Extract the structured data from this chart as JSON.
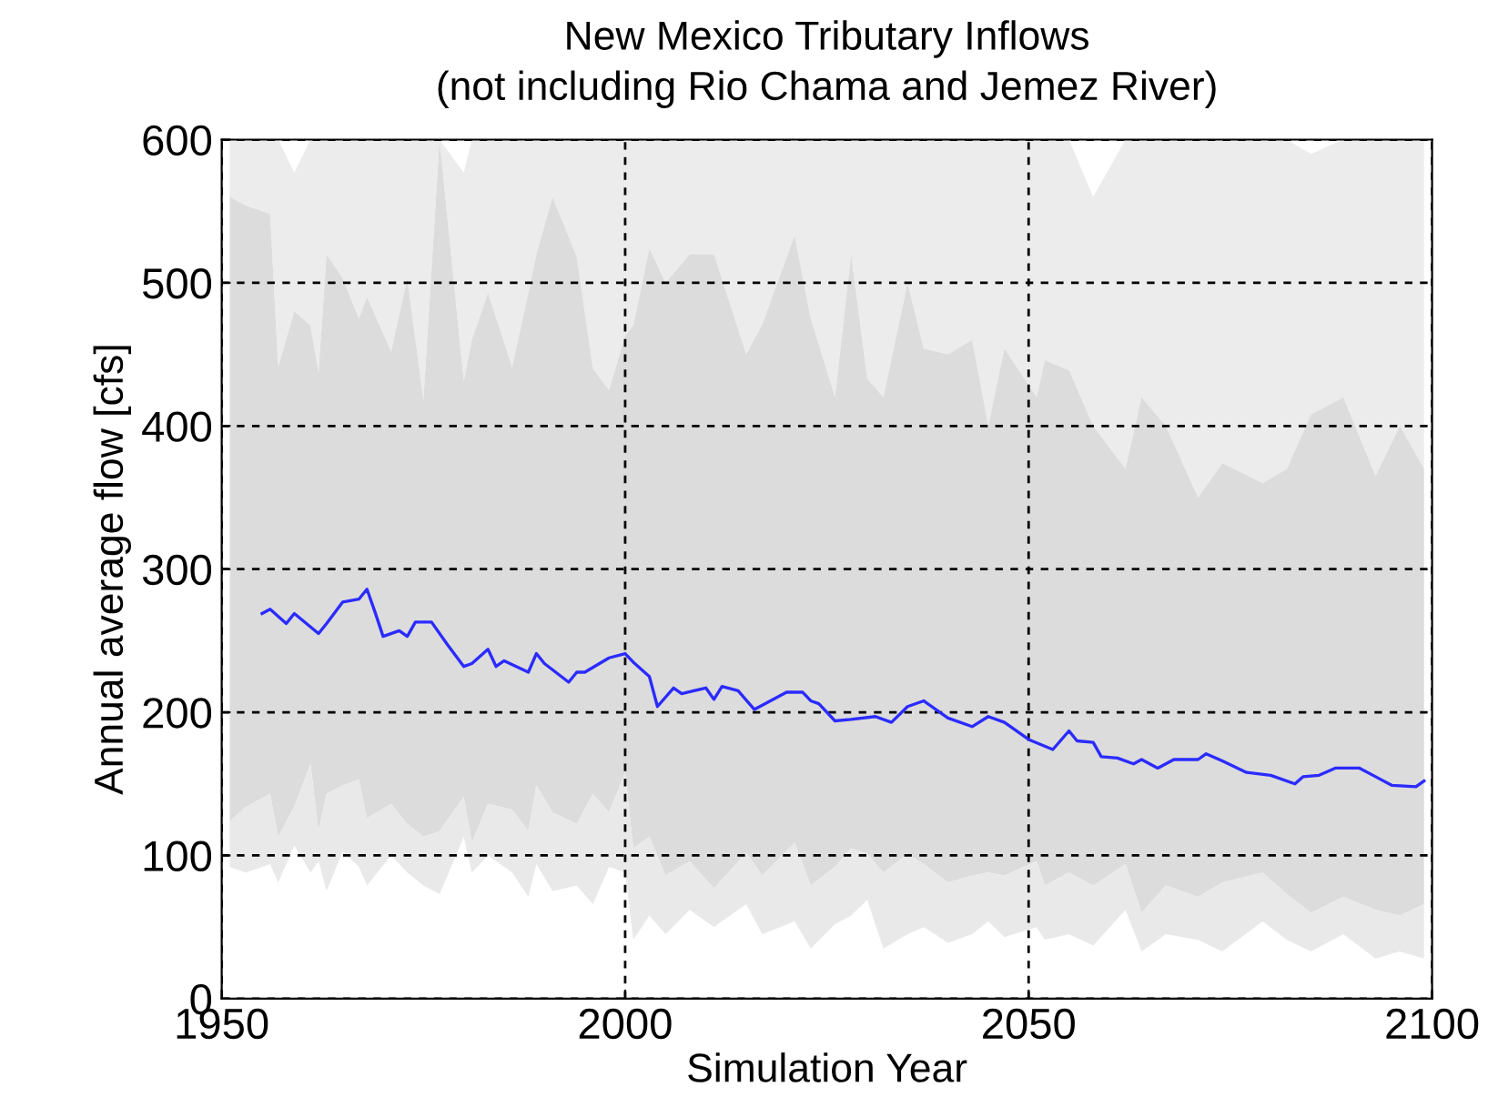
{
  "chart_data": {
    "type": "line",
    "title": "New Mexico Tributary Inflows",
    "subtitle": "(not including Rio Chama and Jemez River)",
    "xlabel": "Simulation Year",
    "ylabel": "Annual average flow [cfs]",
    "xlim": [
      1950,
      2100
    ],
    "xticks": [
      1950,
      2000,
      2050,
      2100
    ],
    "ylim": [
      0,
      600
    ],
    "yticks": [
      0,
      100,
      200,
      300,
      400,
      500,
      600
    ],
    "grid": true,
    "legend": false,
    "series": [
      {
        "color": "#ececec",
        "x": [
          1951,
          1953,
          1956,
          1957,
          1959,
          1961,
          1962,
          1963,
          1965,
          1967,
          1968,
          1971,
          1973,
          1975,
          1977,
          1980,
          1981,
          1983,
          1986,
          1988,
          1989,
          1991,
          1994,
          1996,
          1998,
          2000,
          2001,
          2003,
          2005,
          2008,
          2011,
          2015,
          2017,
          2021,
          2023,
          2026,
          2028,
          2030,
          2032,
          2035,
          2037,
          2040,
          2043,
          2045,
          2047,
          2051,
          2052,
          2055,
          2058,
          2062,
          2064,
          2067,
          2071,
          2074,
          2079,
          2082,
          2085,
          2089,
          2093,
          2096,
          2099
        ],
        "values": [
          null,
          null,
          null,
          null,
          null,
          null,
          null,
          null,
          null,
          null,
          null,
          null,
          null,
          null,
          null,
          null,
          null,
          null,
          null,
          null,
          null,
          null,
          null,
          null,
          null,
          null,
          null,
          null,
          null,
          null,
          null,
          null,
          null,
          null,
          null,
          null,
          null,
          null,
          null,
          null,
          null,
          null,
          null,
          null,
          null,
          null,
          null,
          null,
          null,
          null,
          null,
          null,
          null,
          null,
          null,
          null,
          null,
          null,
          null,
          null,
          null
        ],
        "upper": [
          600,
          600,
          600,
          600,
          577,
          600,
          600,
          600,
          600,
          600,
          600,
          600,
          600,
          600,
          600,
          577,
          600,
          600,
          600,
          600,
          600,
          600,
          600,
          600,
          600,
          600,
          600,
          600,
          600,
          600,
          600,
          600,
          600,
          600,
          600,
          600,
          600,
          600,
          600,
          600,
          600,
          600,
          600,
          600,
          600,
          600,
          600,
          600,
          560,
          600,
          600,
          600,
          600,
          600,
          600,
          600,
          590,
          600,
          600,
          600,
          600
        ],
        "lower": [
          560,
          554,
          548,
          441,
          480,
          470,
          437,
          520,
          503,
          475,
          490,
          452,
          503,
          418,
          600,
          431,
          460,
          493,
          441,
          493,
          520,
          560,
          518,
          440,
          425,
          463,
          470,
          524,
          500,
          520,
          520,
          450,
          471,
          533,
          475,
          420,
          520,
          433,
          420,
          500,
          454,
          450,
          460,
          400,
          454,
          420,
          446,
          439,
          400,
          370,
          420,
          400,
          350,
          374,
          360,
          370,
          408,
          420,
          365,
          400,
          370
        ]
      },
      {
        "color": "#dcdcdc",
        "x": [
          1951,
          1953,
          1956,
          1957,
          1959,
          1961,
          1962,
          1963,
          1965,
          1967,
          1968,
          1971,
          1973,
          1975,
          1977,
          1980,
          1981,
          1983,
          1986,
          1988,
          1989,
          1991,
          1994,
          1996,
          1998,
          2000,
          2001,
          2003,
          2005,
          2008,
          2011,
          2015,
          2017,
          2021,
          2023,
          2026,
          2028,
          2030,
          2032,
          2035,
          2037,
          2040,
          2043,
          2045,
          2047,
          2051,
          2052,
          2055,
          2058,
          2062,
          2064,
          2067,
          2071,
          2074,
          2079,
          2082,
          2085,
          2089,
          2093,
          2096,
          2099
        ],
        "values": [
          null,
          null,
          null,
          null,
          null,
          null,
          null,
          null,
          null,
          null,
          null,
          null,
          null,
          null,
          null,
          null,
          null,
          null,
          null,
          null,
          null,
          null,
          null,
          null,
          null,
          null,
          null,
          null,
          null,
          null,
          null,
          null,
          null,
          null,
          null,
          null,
          null,
          null,
          null,
          null,
          null,
          null,
          null,
          null,
          null,
          null,
          null,
          null,
          null,
          null,
          null,
          null,
          null,
          null,
          null,
          null,
          null,
          null,
          null,
          null,
          null
        ],
        "upper": [
          560,
          554,
          548,
          441,
          480,
          470,
          437,
          520,
          503,
          475,
          490,
          452,
          503,
          418,
          600,
          431,
          460,
          493,
          441,
          493,
          520,
          560,
          518,
          440,
          425,
          463,
          470,
          524,
          500,
          520,
          520,
          450,
          471,
          533,
          475,
          420,
          520,
          433,
          420,
          500,
          454,
          450,
          460,
          400,
          454,
          420,
          446,
          439,
          400,
          370,
          420,
          400,
          350,
          374,
          360,
          370,
          408,
          420,
          365,
          400,
          370
        ],
        "lower": [
          124,
          134,
          143,
          113,
          134,
          164,
          117,
          143,
          149,
          153,
          126,
          136,
          122,
          113,
          117,
          141,
          109,
          136,
          132,
          117,
          149,
          130,
          122,
          143,
          130,
          158,
          105,
          113,
          86,
          96,
          77,
          102,
          86,
          109,
          79,
          92,
          105,
          101,
          88,
          101,
          94,
          81,
          86,
          88,
          86,
          96,
          79,
          88,
          79,
          94,
          60,
          79,
          71,
          81,
          88,
          73,
          60,
          71,
          62,
          58,
          66
        ]
      },
      {
        "color": "#e9e9e9",
        "x": [
          1951,
          1953,
          1956,
          1957,
          1959,
          1961,
          1962,
          1963,
          1965,
          1967,
          1968,
          1971,
          1973,
          1975,
          1977,
          1980,
          1981,
          1983,
          1986,
          1988,
          1989,
          1991,
          1994,
          1996,
          1998,
          2000,
          2001,
          2003,
          2005,
          2008,
          2011,
          2015,
          2017,
          2021,
          2023,
          2026,
          2028,
          2030,
          2032,
          2035,
          2037,
          2040,
          2043,
          2045,
          2047,
          2051,
          2052,
          2055,
          2058,
          2062,
          2064,
          2067,
          2071,
          2074,
          2079,
          2082,
          2085,
          2089,
          2093,
          2096,
          2099
        ],
        "values": [
          null,
          null,
          null,
          null,
          null,
          null,
          null,
          null,
          null,
          null,
          null,
          null,
          null,
          null,
          null,
          null,
          null,
          null,
          null,
          null,
          null,
          null,
          null,
          null,
          null,
          null,
          null,
          null,
          null,
          null,
          null,
          null,
          null,
          null,
          null,
          null,
          null,
          null,
          null,
          null,
          null,
          null,
          null,
          null,
          null,
          null,
          null,
          null,
          null,
          null,
          null,
          null,
          null,
          null,
          null,
          null,
          null,
          null,
          null,
          null,
          null
        ],
        "upper": [
          124,
          134,
          143,
          113,
          134,
          164,
          117,
          143,
          149,
          153,
          126,
          136,
          122,
          113,
          117,
          141,
          109,
          136,
          132,
          117,
          149,
          130,
          122,
          143,
          130,
          158,
          105,
          113,
          86,
          96,
          77,
          102,
          86,
          109,
          79,
          92,
          105,
          101,
          88,
          101,
          94,
          81,
          86,
          88,
          86,
          96,
          79,
          88,
          79,
          94,
          60,
          79,
          71,
          81,
          88,
          73,
          60,
          71,
          62,
          58,
          66
        ],
        "lower": [
          92,
          88,
          94,
          81,
          107,
          88,
          96,
          75,
          103,
          92,
          79,
          100,
          88,
          79,
          73,
          113,
          88,
          100,
          88,
          71,
          94,
          75,
          79,
          66,
          92,
          88,
          41,
          58,
          45,
          62,
          50,
          66,
          45,
          54,
          35,
          52,
          58,
          69,
          35,
          45,
          50,
          39,
          45,
          54,
          43,
          50,
          41,
          45,
          37,
          62,
          33,
          45,
          41,
          33,
          54,
          41,
          33,
          45,
          28,
          33,
          28
        ]
      },
      {
        "color": "#2b2bff",
        "x": [
          1955,
          1956,
          1958,
          1959,
          1962,
          1963,
          1965,
          1967,
          1968,
          1969,
          1970,
          1972,
          1973,
          1974,
          1976,
          1978,
          1980,
          1981,
          1983,
          1984,
          1985,
          1988,
          1989,
          1990,
          1993,
          1994,
          1995,
          1998,
          2000,
          2001,
          2003,
          2004,
          2006,
          2007,
          2010,
          2011,
          2012,
          2014,
          2016,
          2020,
          2022,
          2023,
          2024,
          2026,
          2028,
          2031,
          2033,
          2035,
          2037,
          2040,
          2043,
          2045,
          2047,
          2050,
          2053,
          2055,
          2056,
          2058,
          2059,
          2061,
          2063,
          2064,
          2066,
          2068,
          2071,
          2072,
          2074,
          2077,
          2080,
          2083,
          2084,
          2086,
          2088,
          2091,
          2093,
          2095,
          2098,
          2099
        ],
        "values": [
          269,
          272,
          262,
          269,
          255,
          262,
          277,
          279,
          286,
          270,
          253,
          257,
          253,
          263,
          263,
          247,
          232,
          234,
          244,
          232,
          236,
          228,
          241,
          234,
          221,
          228,
          228,
          238,
          241,
          235,
          225,
          204,
          217,
          213,
          217,
          209,
          218,
          215,
          202,
          214,
          214,
          208,
          206,
          194,
          195,
          197,
          193,
          204,
          208,
          196,
          190,
          197,
          193,
          181,
          174,
          187,
          180,
          179,
          169,
          168,
          164,
          167,
          161,
          167,
          167,
          171,
          166,
          158,
          156,
          150,
          155,
          156,
          161,
          161,
          155,
          149,
          148,
          152
        ]
      }
    ]
  }
}
